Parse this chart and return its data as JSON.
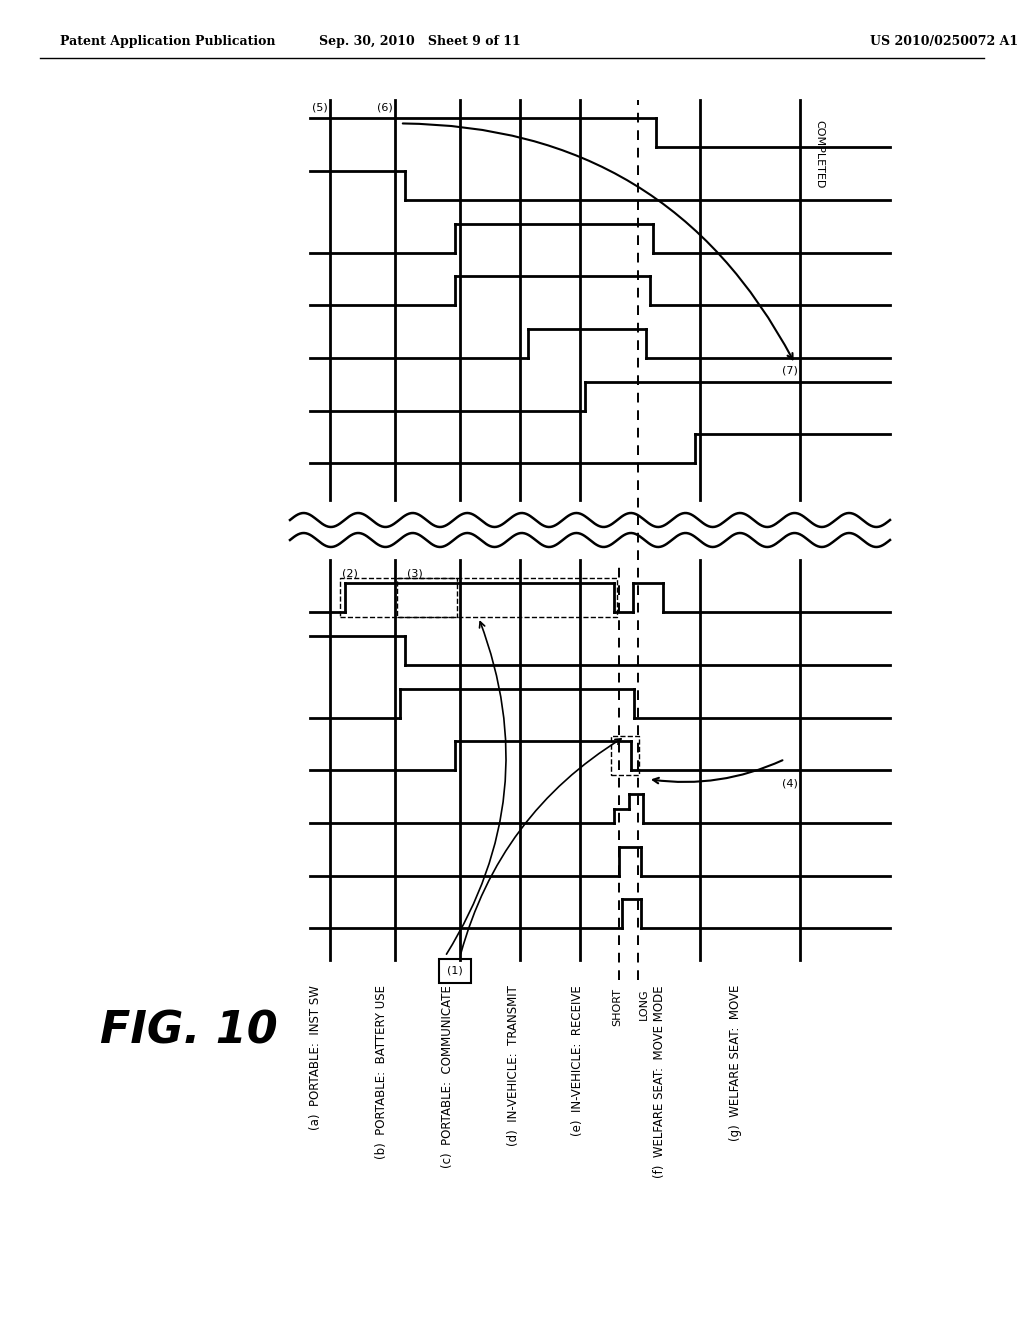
{
  "title": "FIG. 10",
  "header_left": "Patent Application Publication",
  "header_center": "Sep. 30, 2010   Sheet 9 of 11",
  "header_right": "US 2010/0250072 A1",
  "bg_color": "#ffffff",
  "legend": [
    "(a)  PORTABLE:  INST SW",
    "(b)  PORTABLE:  BATTERY USE",
    "(c)  PORTABLE:  COMMUNICATE",
    "(d)  IN-VEHICLE:  TRANSMIT",
    "(e)  IN-VEHICLE:  RECEIVE",
    "(f)  WELFARE SEAT:  MOVE MODE",
    "(g)  WELFARE SEAT:  MOVE"
  ],
  "line_color": "#000000"
}
